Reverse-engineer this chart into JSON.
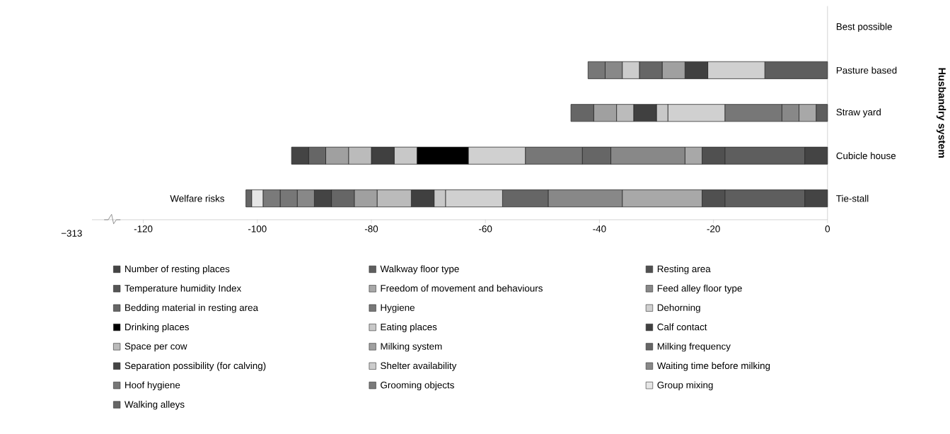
{
  "chart_data": {
    "type": "bar",
    "orientation": "horizontal",
    "stacked": true,
    "ylabel": "Husbandry system",
    "categories": [
      "Best possible",
      "Pasture based",
      "Straw yard",
      "Cubicle house",
      "Tie-stall"
    ],
    "xlim": [
      -129,
      0
    ],
    "xticks": [
      -120,
      -100,
      -80,
      -60,
      -40,
      -20,
      0
    ],
    "annotations": [
      "Welfare risks",
      "−313"
    ],
    "legend": "bottom",
    "series": [
      {
        "name": "Number of resting places",
        "color": "#444444",
        "values": [
          null,
          null,
          null,
          -4,
          -4
        ]
      },
      {
        "name": "Walkway floor type",
        "color": "#5e5e5e",
        "values": [
          null,
          -11,
          -2,
          -14,
          -14
        ]
      },
      {
        "name": "Resting area",
        "color": "#505050",
        "values": [
          null,
          null,
          null,
          -4,
          -4
        ]
      },
      {
        "name": "Temperature humidity Index",
        "color": "#555555",
        "values": [
          null,
          null,
          null,
          null,
          null
        ]
      },
      {
        "name": "Freedom of movement and behaviours",
        "color": "#a8a8a8",
        "values": [
          null,
          null,
          -3,
          -3,
          -14
        ]
      },
      {
        "name": "Feed alley floor type",
        "color": "#888888",
        "values": [
          null,
          null,
          -3,
          -13,
          -13
        ]
      },
      {
        "name": "Bedding material in resting area",
        "color": "#666666",
        "values": [
          null,
          null,
          null,
          -5,
          -8
        ]
      },
      {
        "name": "Hygiene",
        "color": "#777777",
        "values": [
          null,
          null,
          -10,
          -10,
          null
        ]
      },
      {
        "name": "Dehorning",
        "color": "#d0d0d0",
        "values": [
          null,
          -10,
          -10,
          -10,
          -10
        ]
      },
      {
        "name": "Drinking places",
        "color": "#000000",
        "values": [
          null,
          null,
          null,
          -9,
          null
        ]
      },
      {
        "name": "Eating places",
        "color": "#c8c8c8",
        "values": [
          null,
          null,
          -2,
          -4,
          -2
        ]
      },
      {
        "name": "Calf contact",
        "color": "#404040",
        "values": [
          null,
          -4,
          -4,
          -4,
          -4
        ]
      },
      {
        "name": "Space per cow",
        "color": "#bbbbbb",
        "values": [
          null,
          null,
          -3,
          -4,
          -6
        ]
      },
      {
        "name": "Milking system",
        "color": "#a0a0a0",
        "values": [
          null,
          -4,
          -4,
          -4,
          -4
        ]
      },
      {
        "name": "Milking frequency",
        "color": "#666666",
        "values": [
          null,
          -4,
          -4,
          -3,
          -4
        ]
      },
      {
        "name": "Separation possibility (for calving)",
        "color": "#444444",
        "values": [
          null,
          null,
          null,
          -3,
          -3
        ]
      },
      {
        "name": "Shelter availability",
        "color": "#cccccc",
        "values": [
          null,
          -3,
          null,
          null,
          null
        ]
      },
      {
        "name": "Waiting time before milking",
        "color": "#888888",
        "values": [
          null,
          -3,
          null,
          null,
          -3
        ]
      },
      {
        "name": "Hoof hygiene",
        "color": "#777777",
        "values": [
          null,
          -3,
          null,
          null,
          -3
        ]
      },
      {
        "name": "Grooming objects",
        "color": "#7a7a7a",
        "values": [
          null,
          null,
          null,
          null,
          -3
        ]
      },
      {
        "name": "Group mixing",
        "color": "#e6e6e6",
        "values": [
          null,
          null,
          null,
          null,
          -2
        ]
      },
      {
        "name": "Walking alleys",
        "color": "#666666",
        "values": [
          null,
          null,
          null,
          null,
          -1
        ]
      }
    ]
  }
}
